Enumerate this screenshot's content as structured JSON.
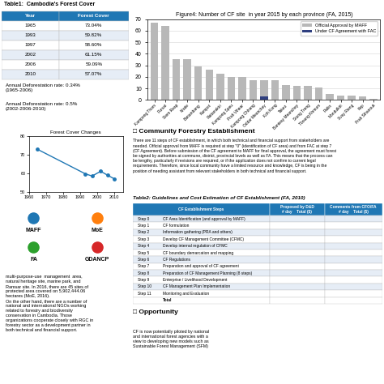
{
  "chart_data": [
    {
      "type": "table",
      "title": "Table1:  Cambodia's Forest Cover",
      "columns": [
        "Year",
        "Forest Cover"
      ],
      "rows": [
        [
          "1965",
          "73.04%"
        ],
        [
          "1993",
          "59.82%"
        ],
        [
          "1997",
          "58.60%"
        ],
        [
          "2002",
          "61.15%"
        ],
        [
          "2006",
          "59.09%"
        ],
        [
          "2010",
          "57.07%"
        ]
      ]
    },
    {
      "type": "text",
      "annotations": [
        "Annual Deforestation rate: 0.34%\n(1965-2006)",
        "Annual Deforestation rate: 0.5%\n(2002-2006-2010)"
      ]
    },
    {
      "type": "line",
      "title": "Forest Cover Changes",
      "x": [
        1965,
        1993,
        1997,
        2002,
        2006,
        2010
      ],
      "values": [
        73.04,
        59.82,
        58.6,
        61.15,
        59.09,
        57.07
      ],
      "xlim": [
        1960,
        2015
      ],
      "ylim": [
        50,
        80
      ],
      "xticks": [
        1960,
        1970,
        1980,
        1990,
        2000,
        2010
      ],
      "yticks": [
        50,
        60,
        70,
        80
      ],
      "marker": "o"
    },
    {
      "type": "logos",
      "annotations": [
        "MAFF",
        "MoE",
        "FA",
        "GDANCP"
      ]
    },
    {
      "type": "text",
      "annotations": [
        "multi-purpose-use  management  area,\nnatural heritage site, marine park, and\nRamsar site. In 2016, there are 45 sites of\nprotected area covered on 5,902,444.06\nhectares (MoE, 2016).\nOn the other hand, there are a number of\nnational and international NGOs working\nrelated to forestry and biodiversity\nconservation in Cambodia. Those\norganizations cooperate closely with RGC in\nforestry sector as a development partner in\nboth technical and financial support."
      ]
    },
    {
      "type": "bar",
      "title": "Figure4: Number of CF site  in year 2015 by each province (FA, 2015)",
      "categories": [
        "Kampong Thom",
        "Pursat",
        "Siem Reap",
        "Kratie",
        "Battambang",
        "Kampot",
        "Rattanakiri",
        "Kampong Speu",
        "Prah Vihear",
        "Kampong Chhang",
        "Oddar Meanchey",
        "Koh Kong",
        "Takeo",
        "Banteay Meanchey",
        "Stung Treng",
        "Tboung Khmum",
        "Pailin",
        "Mondulkiri",
        "Svay Rieng",
        "Kep",
        "Prah Sihanouk"
      ],
      "series": [
        {
          "name": "Official Approval by MAFF",
          "color": "#b8b8b8",
          "values": [
            67,
            64,
            35,
            35,
            29,
            26,
            23,
            20,
            20,
            17,
            17,
            17,
            13,
            12,
            12,
            11,
            5,
            4,
            4,
            3,
            1
          ]
        },
        {
          "name": "Under CF Agreement with FAC",
          "color": "#2f3f7f",
          "values": [
            0,
            0,
            0,
            0,
            0,
            0,
            0,
            0,
            0,
            0,
            3,
            0,
            0,
            0,
            0,
            0,
            0,
            0,
            0,
            0,
            0
          ]
        }
      ],
      "ylim": [
        0,
        70
      ],
      "yticks": [
        0,
        10,
        20,
        30,
        40,
        50,
        60,
        70
      ],
      "grid": true,
      "legend": "upper right"
    },
    {
      "type": "text",
      "title": "□ Community Forestry Establishment",
      "annotations": [
        "There are 11 steps of CF establishment, in which both technical and financial support from stakeholders are\nneeded. Official approval from MAFF is required at step \"0\" (identification of CF area) and from FAC at step 7\n(CF Agreement). Before submission of the CF agreement to MAFF for final approval, the agreement must forest\nbe signed by authorities at commune, district, provincial levels as well as FA. This means that the process can\nbe lengthy, particularly if revisions are required, or if the application does not confirm to current legal\nrequirements. Therefore, since local community have a limited resource and knowledge, CF is being in the\nposition of needing assistant from relevant stakeholders in both technical and financial support."
      ]
    },
    {
      "type": "table",
      "title": "Table2: Guidelines and Cost Estimation of CF Establishment (FA, 2010)",
      "columns": [
        "CF Establishment Steps",
        "Proposed by D&D\n# day    Total ($)",
        "Comments from CFO/FA\n# day    Total ($)"
      ],
      "rows": [
        [
          "Step 0",
          "CF Area Identification (and approval by MAFF)"
        ],
        [
          "Step 1",
          "CF formulation"
        ],
        [
          "Step 2",
          "Information gathering (PRA and others)"
        ],
        [
          "Step 3",
          "Develop CF Management Committee (CFMC)"
        ],
        [
          "Step 4",
          "Develop internal regulation of CFMC"
        ],
        [
          "Step 5",
          "CF boundary demarcation and mapping"
        ],
        [
          "Step 6",
          "CF Regulations"
        ],
        [
          "Step 7",
          "Preparation and approval of CF agreement"
        ],
        [
          "Step 8",
          "Preparation of CF Management Planning (8 steps)"
        ],
        [
          "Step 9",
          "Enterprise / Livelihood Development"
        ],
        [
          "Step 10",
          "CF Management Plan Implementation"
        ],
        [
          "Step 11",
          "Monitoring and Evaluation"
        ],
        [
          null,
          "Total"
        ]
      ]
    },
    {
      "type": "text",
      "title": "□ Opportunity",
      "annotations": [
        "CF is now potentially piloted by national\nand international forest agencies with a\nview to developing new models such as\nSustainable Forest Management (SFM)"
      ]
    }
  ]
}
